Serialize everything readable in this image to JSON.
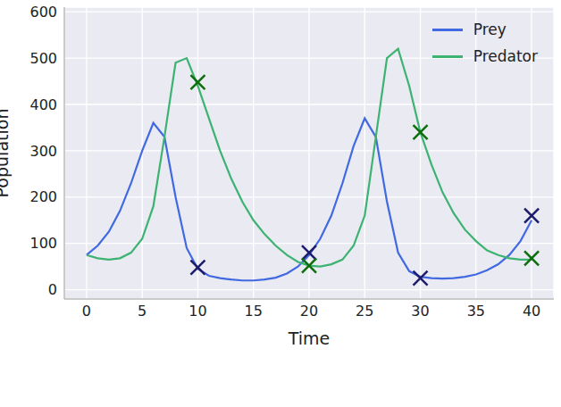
{
  "chart_data": {
    "type": "line",
    "x_label": "Time",
    "y_label": "Population",
    "x": [
      0,
      1,
      2,
      3,
      4,
      5,
      6,
      7,
      8,
      9,
      10,
      11,
      12,
      13,
      14,
      15,
      16,
      17,
      18,
      19,
      20,
      21,
      22,
      23,
      24,
      25,
      26,
      27,
      28,
      29,
      30,
      31,
      32,
      33,
      34,
      35,
      36,
      37,
      38,
      39,
      40
    ],
    "series": [
      {
        "name": "Prey",
        "color": "#4169e1",
        "values": [
          75,
          95,
          125,
          170,
          230,
          300,
          360,
          330,
          200,
          90,
          45,
          30,
          25,
          22,
          20,
          20,
          22,
          26,
          35,
          50,
          75,
          110,
          160,
          230,
          310,
          370,
          330,
          190,
          80,
          40,
          28,
          25,
          24,
          25,
          28,
          33,
          42,
          55,
          75,
          105,
          150
        ],
        "observed": {
          "x": [
            10,
            20,
            30,
            40
          ],
          "values": [
            48,
            80,
            25,
            160
          ],
          "color": "#1c1c6b",
          "marker": "x"
        }
      },
      {
        "name": "Predator",
        "color": "#3cb371",
        "values": [
          75,
          68,
          65,
          68,
          80,
          110,
          180,
          330,
          490,
          500,
          440,
          370,
          300,
          240,
          190,
          150,
          120,
          95,
          75,
          60,
          52,
          50,
          55,
          65,
          95,
          160,
          330,
          500,
          520,
          440,
          340,
          270,
          210,
          165,
          130,
          105,
          85,
          75,
          68,
          65,
          65
        ],
        "observed": {
          "x": [
            10,
            20,
            30,
            40
          ],
          "values": [
            448,
            52,
            340,
            68
          ],
          "color": "#0b6e0b",
          "marker": "x"
        }
      }
    ],
    "xlim": [
      -2,
      42
    ],
    "xticks": [
      0,
      5,
      10,
      15,
      20,
      25,
      30,
      35,
      40
    ],
    "ylim": [
      -20,
      610
    ],
    "yticks": [
      0,
      100,
      200,
      300,
      400,
      500,
      600
    ],
    "grid": true,
    "legend": "upper right"
  }
}
